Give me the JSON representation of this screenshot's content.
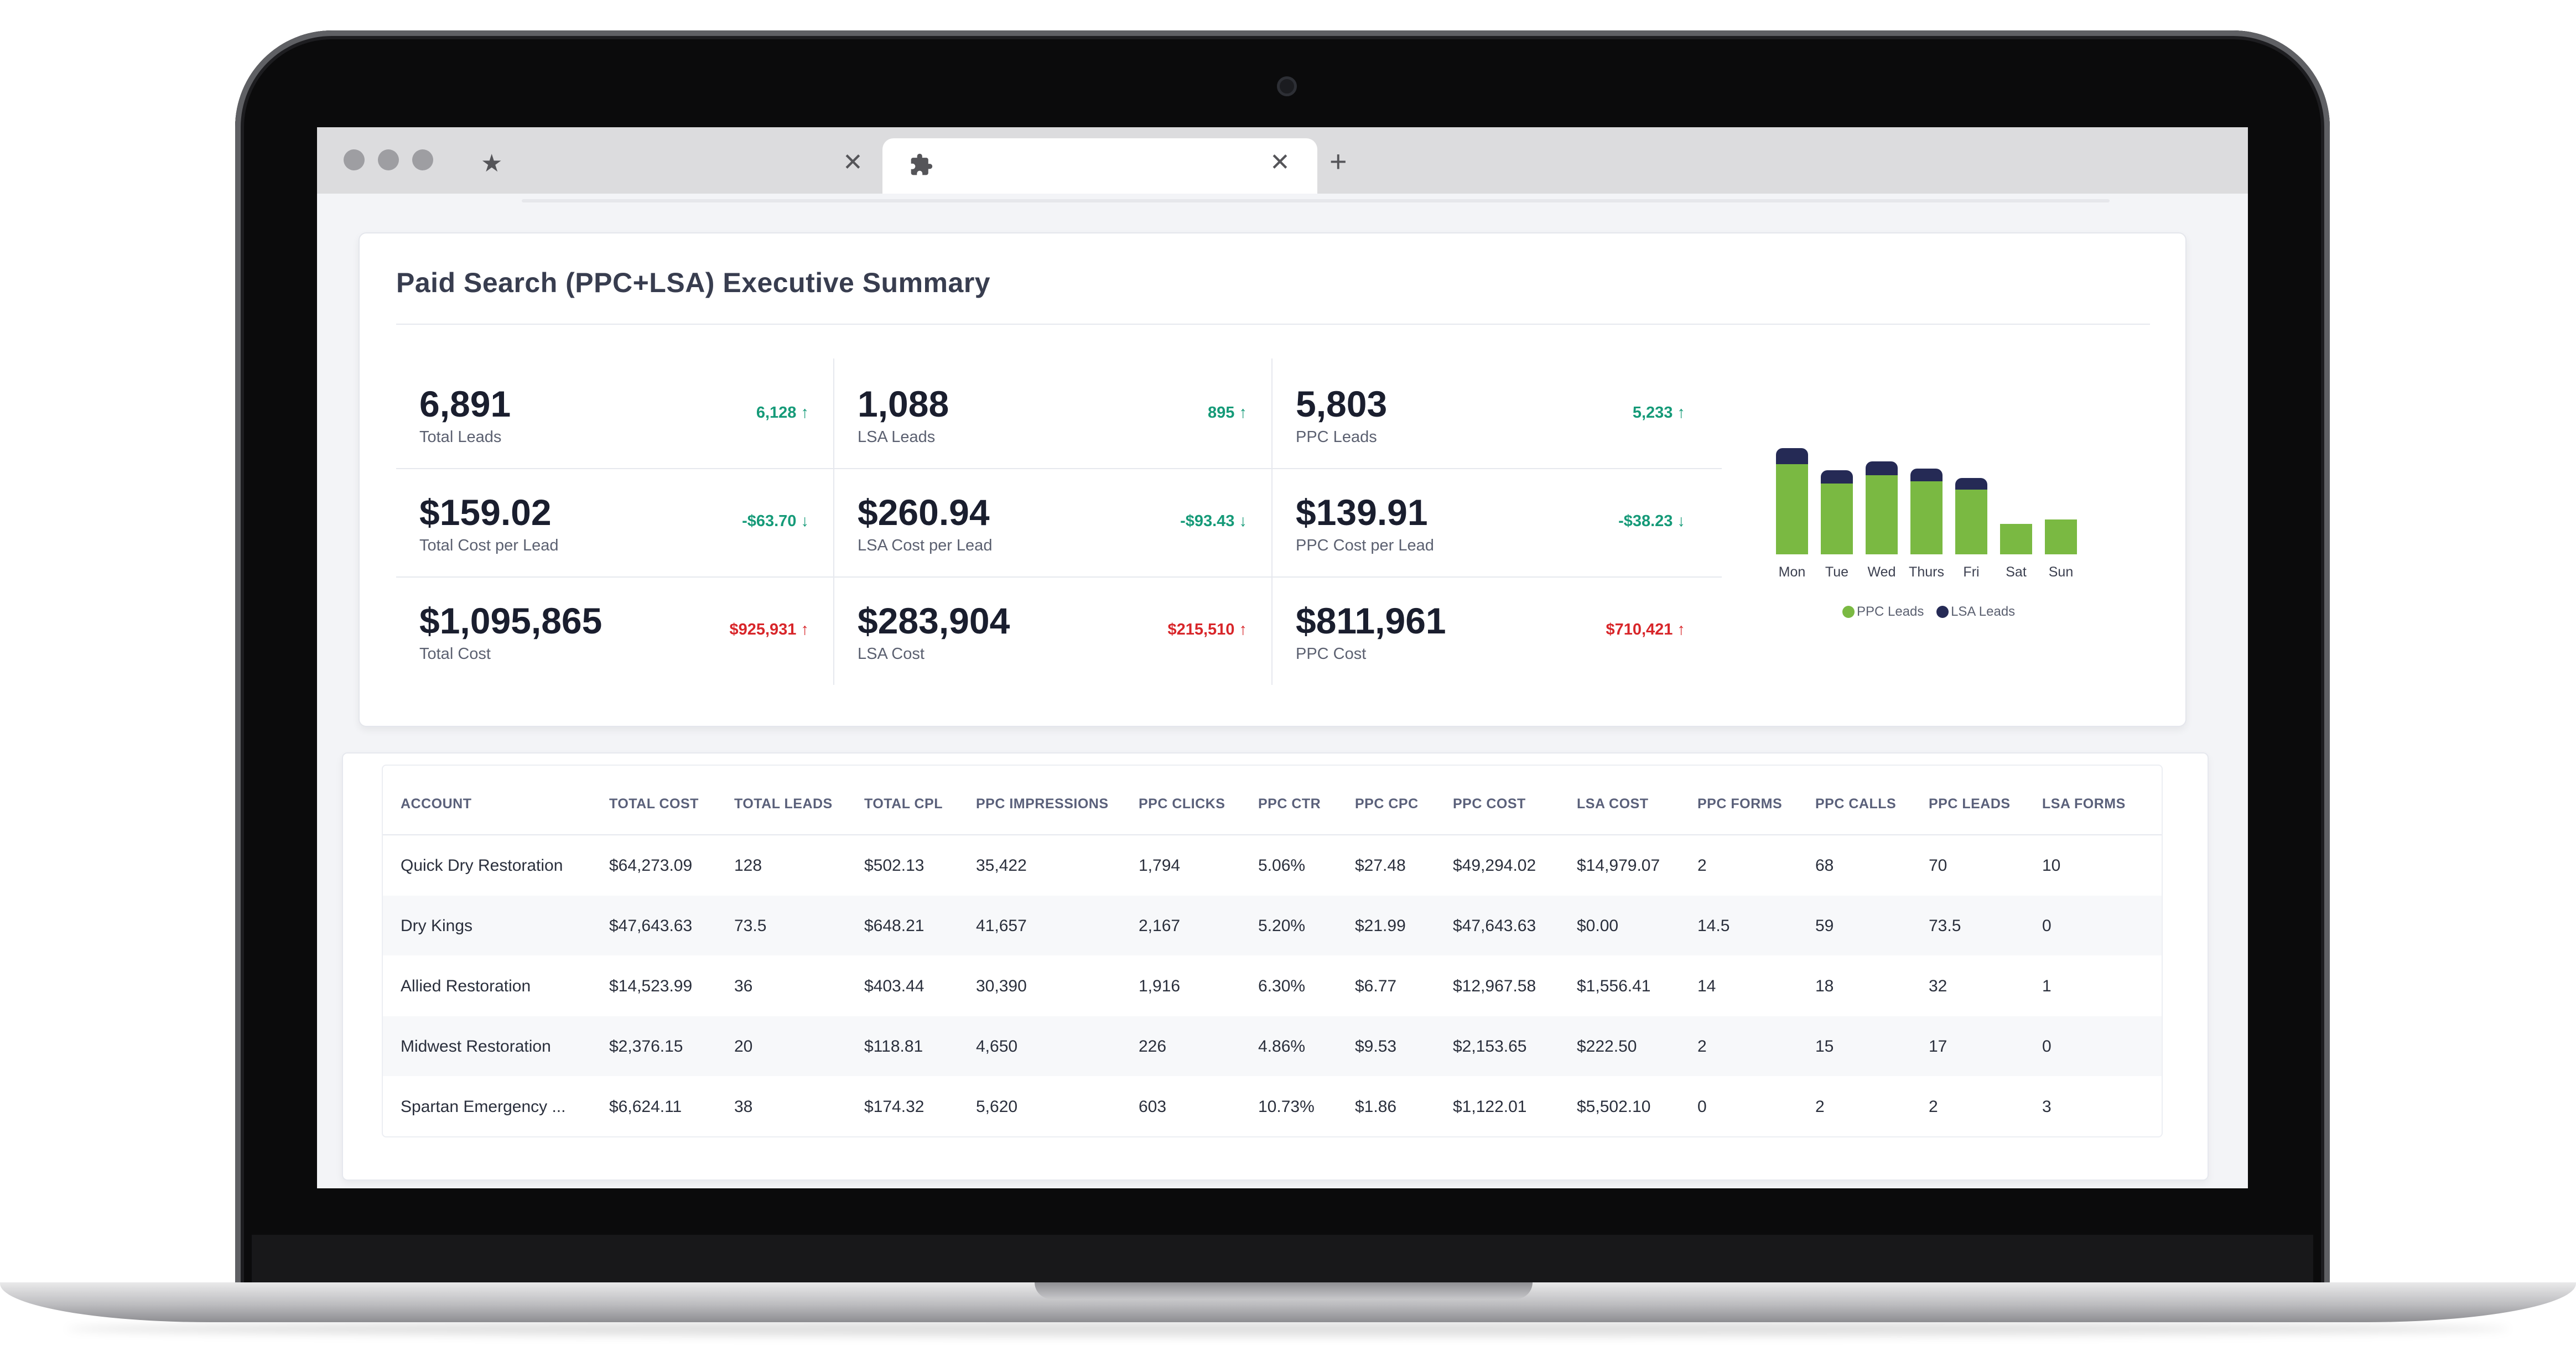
{
  "summary": {
    "title": "Paid Search (PPC+LSA) Executive Summary",
    "metrics": [
      {
        "value": "6,891",
        "label": "Total Leads",
        "delta": "6,128 ↑",
        "trend": "good"
      },
      {
        "value": "1,088",
        "label": "LSA Leads",
        "delta": "895 ↑",
        "trend": "good"
      },
      {
        "value": "5,803",
        "label": "PPC Leads",
        "delta": "5,233 ↑",
        "trend": "good"
      },
      {
        "value": "$159.02",
        "label": "Total Cost per Lead",
        "delta": "-$63.70 ↓",
        "trend": "good"
      },
      {
        "value": "$260.94",
        "label": "LSA Cost per Lead",
        "delta": "-$93.43 ↓",
        "trend": "good"
      },
      {
        "value": "$139.91",
        "label": "PPC Cost per Lead",
        "delta": "-$38.23 ↓",
        "trend": "good"
      },
      {
        "value": "$1,095,865",
        "label": "Total Cost",
        "delta": "$925,931 ↑",
        "trend": "bad"
      },
      {
        "value": "$283,904",
        "label": "LSA Cost",
        "delta": "$215,510 ↑",
        "trend": "bad"
      },
      {
        "value": "$811,961",
        "label": "PPC Cost",
        "delta": "$710,421 ↑",
        "trend": "bad"
      }
    ],
    "colors": {
      "good": "#159a78",
      "bad": "#d8262a",
      "ppc": "#7ab942",
      "lsa": "#252a55"
    }
  },
  "chart_data": {
    "type": "bar",
    "stacked": true,
    "categories": [
      "Mon",
      "Tue",
      "Wed",
      "Thurs",
      "Fri",
      "Sat",
      "Sun"
    ],
    "series": [
      {
        "name": "PPC Leads",
        "values": [
          980,
          770,
          860,
          790,
          700,
          330,
          380
        ]
      },
      {
        "name": "LSA Leads",
        "values": [
          170,
          140,
          150,
          140,
          130,
          0,
          0
        ]
      }
    ],
    "ylim": [
      0,
      1200
    ],
    "legend": "bottom",
    "grid": false
  },
  "browser": {
    "new_tab_icon": "plus-icon",
    "close_icon": "close-icon"
  },
  "table": {
    "headers": [
      "ACCOUNT",
      "TOTAL COST",
      "TOTAL LEADS",
      "TOTAL CPL",
      "PPC IMPRESSIONS",
      "PPC CLICKS",
      "PPC CTR",
      "PPC CPC",
      "PPC COST",
      "LSA COST",
      "PPC FORMS",
      "PPC CALLS",
      "PPC LEADS",
      "LSA FORMS"
    ],
    "rows": [
      [
        "Quick Dry Restoration",
        "$64,273.09",
        "128",
        "$502.13",
        "35,422",
        "1,794",
        "5.06%",
        "$27.48",
        "$49,294.02",
        "$14,979.07",
        "2",
        "68",
        "70",
        "10"
      ],
      [
        "Dry Kings",
        "$47,643.63",
        "73.5",
        "$648.21",
        "41,657",
        "2,167",
        "5.20%",
        "$21.99",
        "$47,643.63",
        "$0.00",
        "14.5",
        "59",
        "73.5",
        "0"
      ],
      [
        "Allied Restoration",
        "$14,523.99",
        "36",
        "$403.44",
        "30,390",
        "1,916",
        "6.30%",
        "$6.77",
        "$12,967.58",
        "$1,556.41",
        "14",
        "18",
        "32",
        "1"
      ],
      [
        "Midwest Restoration",
        "$2,376.15",
        "20",
        "$118.81",
        "4,650",
        "226",
        "4.86%",
        "$9.53",
        "$2,153.65",
        "$222.50",
        "2",
        "15",
        "17",
        "0"
      ],
      [
        "Spartan Emergency ...",
        "$6,624.11",
        "38",
        "$174.32",
        "5,620",
        "603",
        "10.73%",
        "$1.86",
        "$1,122.01",
        "$5,502.10",
        "0",
        "2",
        "2",
        "3"
      ]
    ]
  }
}
